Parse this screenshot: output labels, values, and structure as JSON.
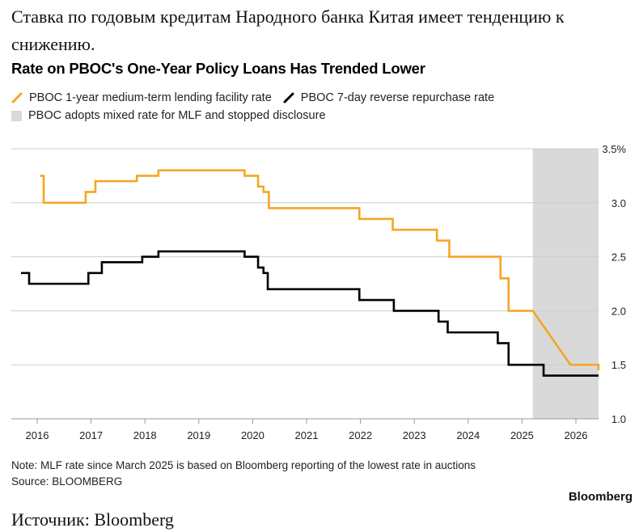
{
  "article": {
    "heading": "Ставка по годовым кредитам Народного банка Китая имеет тенденцию к снижению.",
    "source": "Источник: Bloomberg"
  },
  "legend": {
    "mlf": "PBOC 1-year medium-term lending facility rate",
    "reverse_repo": "PBOC 7-day reverse repurchase rate",
    "shade": "PBOC adopts mixed rate for MLF and stopped disclosure"
  },
  "footer": {
    "note": "Note: MLF rate since March 2025 is based on Bloomberg reporting of the lowest rate in auctions",
    "source": "Source: BLOOMBERG",
    "brand": "Bloomberg"
  },
  "chart_data": {
    "type": "line",
    "title": "Rate on PBOC's One-Year Policy Loans Has Trended Lower",
    "xlabel": "",
    "ylabel": "",
    "xlim": [
      2015.6,
      2026.6
    ],
    "ylim": [
      1.0,
      3.5
    ],
    "y_ticks": [
      1.0,
      1.5,
      2.0,
      2.5,
      3.0,
      3.5
    ],
    "y_tick_labels": [
      "1.0",
      "1.5",
      "2.0",
      "2.5",
      "3.0",
      "3.5%"
    ],
    "x_ticks": [
      2016,
      2017,
      2018,
      2019,
      2020,
      2021,
      2022,
      2023,
      2024,
      2025,
      2026
    ],
    "x_tick_labels": [
      "2016",
      "2017",
      "2018",
      "2019",
      "2020",
      "2021",
      "2022",
      "2023",
      "2024",
      "2025",
      "2026"
    ],
    "grid": true,
    "legend_position": "top-left",
    "colors": {
      "mlf": "#f5a623",
      "reverse_repo": "#000000",
      "shade": "#d9d9d9",
      "grid": "#cccccc"
    },
    "shaded_region": {
      "x_start": 2025.2,
      "x_end": 2026.42
    },
    "series": [
      {
        "name": "PBOC 1-year medium-term lending facility rate",
        "color": "#f5a623",
        "step": true,
        "x": [
          2016.05,
          2016.12,
          2016.9,
          2017.08,
          2017.2,
          2017.85,
          2017.95,
          2018.25,
          2019.85,
          2020.1,
          2020.2,
          2020.3,
          2021.98,
          2022.6,
          2023.42,
          2023.6,
          2023.65,
          2024.6,
          2024.67,
          2024.75,
          2025.2,
          2025.9,
          2026.38,
          2026.42
        ],
        "y": [
          3.25,
          3.0,
          3.1,
          3.2,
          3.2,
          3.25,
          3.25,
          3.3,
          3.25,
          3.15,
          3.1,
          2.95,
          2.85,
          2.75,
          2.65,
          2.65,
          2.5,
          2.3,
          2.3,
          2.0,
          2.0,
          1.5,
          1.5,
          1.45
        ]
      },
      {
        "name": "PBOC 7-day reverse repurchase rate",
        "color": "#000000",
        "step": true,
        "x": [
          2015.7,
          2015.85,
          2016.05,
          2016.95,
          2017.08,
          2017.2,
          2017.95,
          2018.25,
          2019.85,
          2020.1,
          2020.2,
          2020.28,
          2021.98,
          2022.62,
          2023.45,
          2023.62,
          2024.55,
          2024.75,
          2025.4,
          2026.42
        ],
        "y": [
          2.35,
          2.25,
          2.25,
          2.35,
          2.35,
          2.45,
          2.5,
          2.55,
          2.5,
          2.4,
          2.35,
          2.2,
          2.1,
          2.0,
          1.9,
          1.8,
          1.7,
          1.5,
          1.4,
          1.4
        ],
        "linear_segments": []
      }
    ]
  }
}
